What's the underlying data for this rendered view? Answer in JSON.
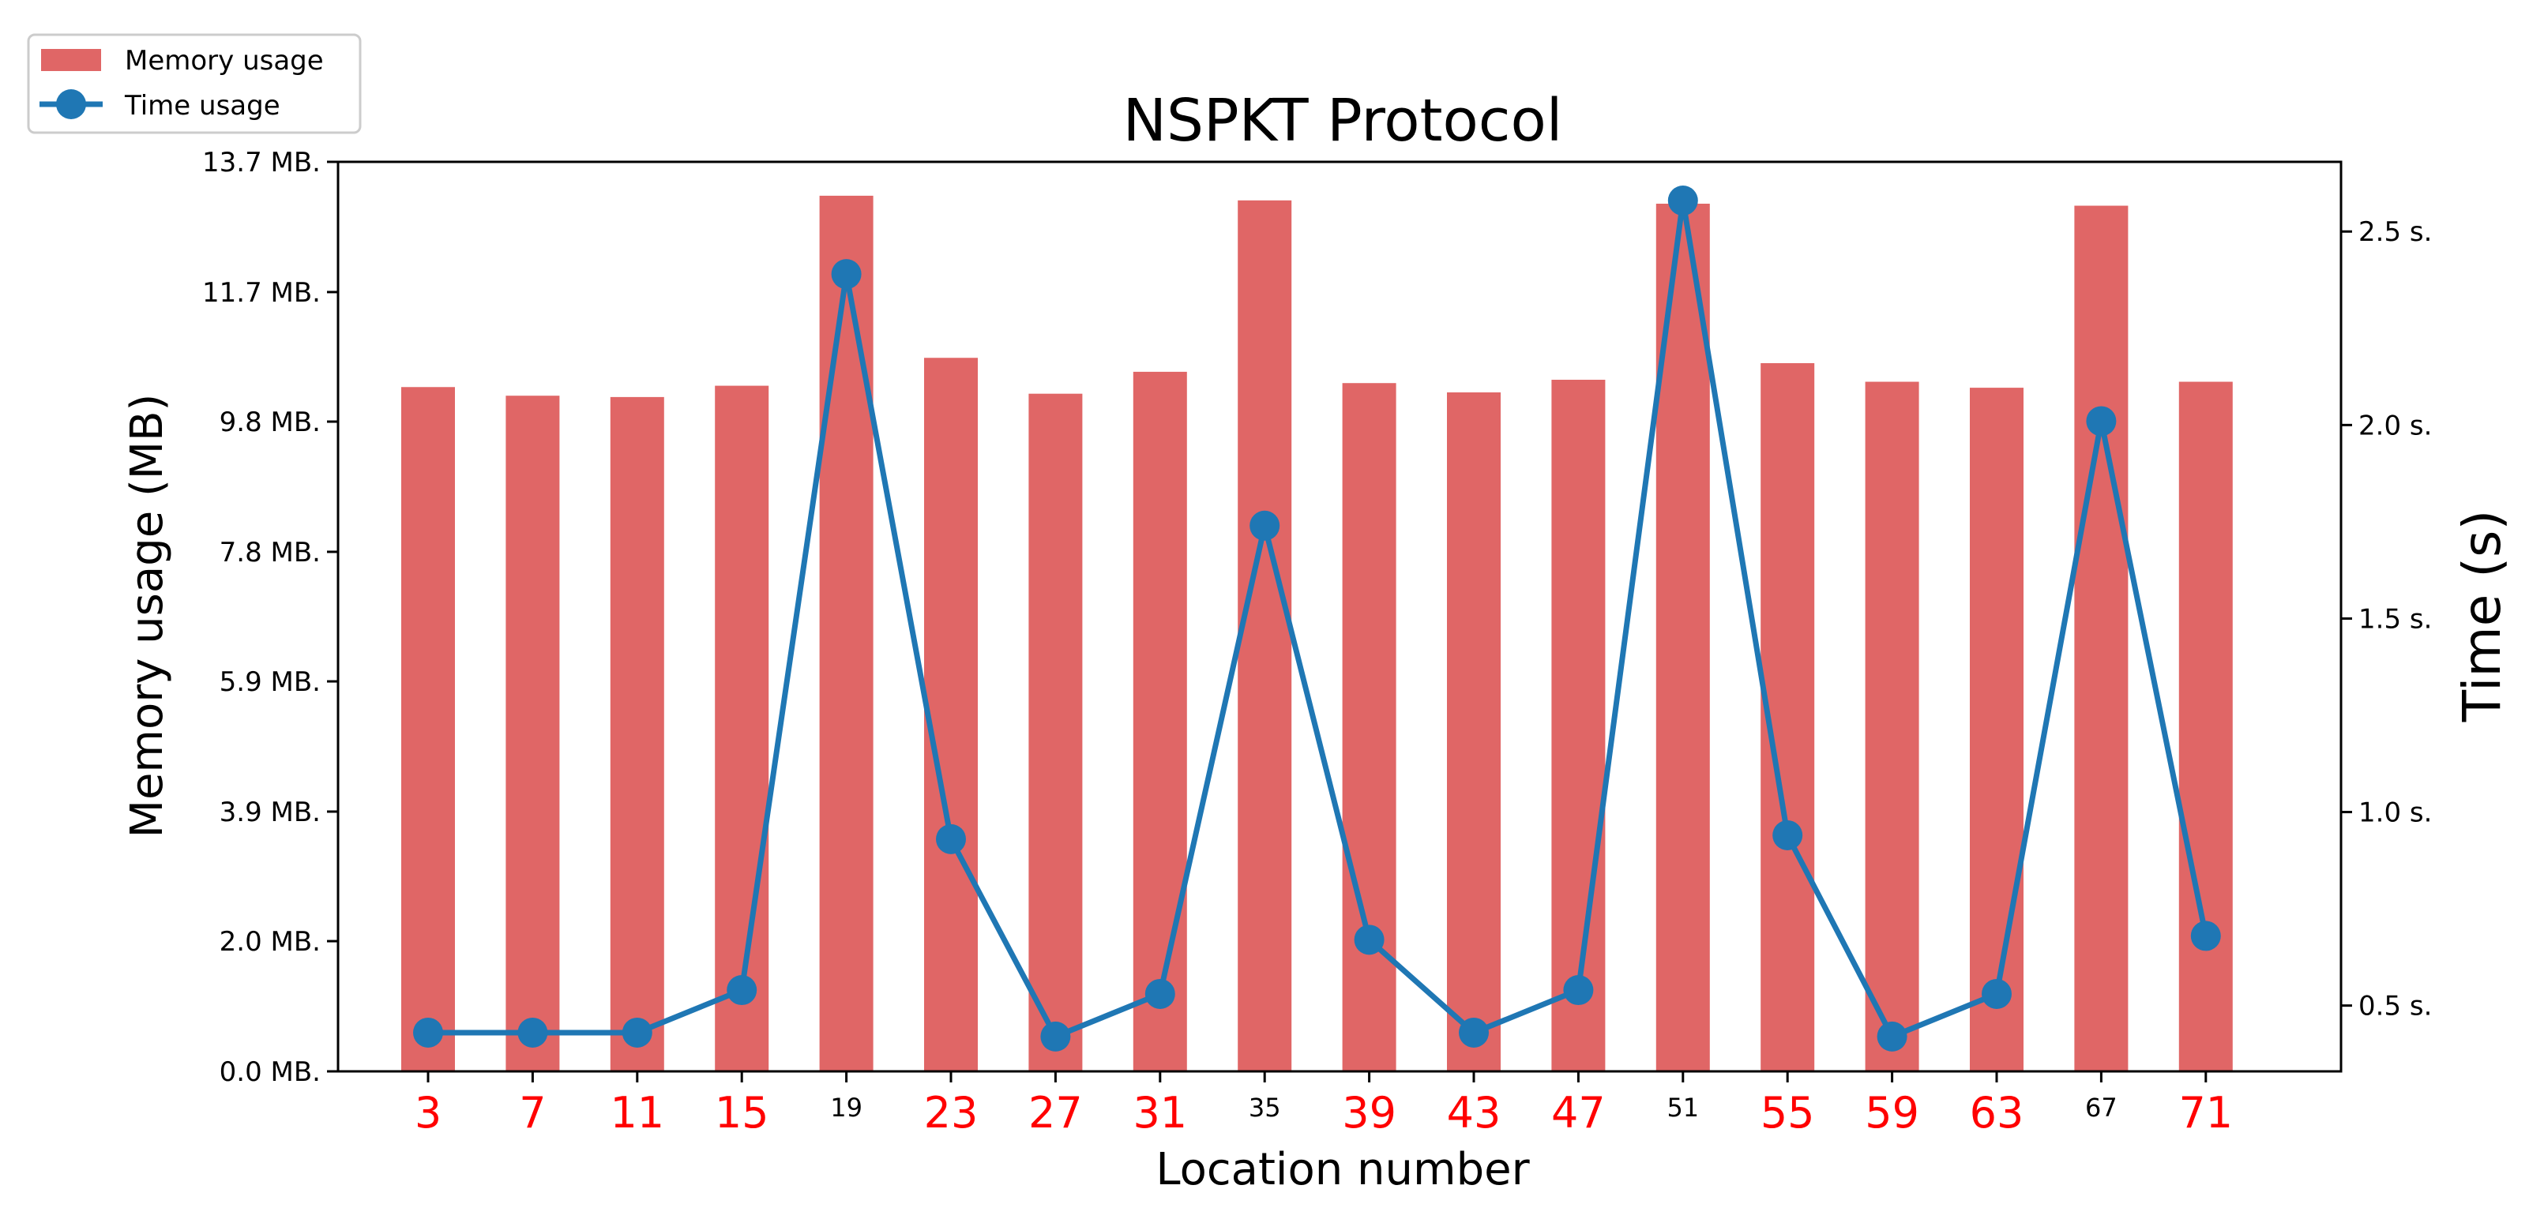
{
  "chart_data": {
    "type": "bar",
    "title": "NSPKT Protocol",
    "xlabel": "Location number",
    "ylabel": "Memory usage (MB)",
    "y2label": "Time (s)",
    "categories": [
      "3",
      "7",
      "11",
      "15",
      "19",
      "23",
      "27",
      "31",
      "35",
      "39",
      "43",
      "47",
      "51",
      "55",
      "59",
      "63",
      "67",
      "71"
    ],
    "highlighted_categories": [
      "3",
      "7",
      "11",
      "15",
      "23",
      "27",
      "31",
      "39",
      "43",
      "47",
      "55",
      "59",
      "63",
      "71"
    ],
    "y_ticks": [
      "0.0 MB.",
      "2.0 MB.",
      "3.9 MB.",
      "5.9 MB.",
      "7.8 MB.",
      "9.8 MB.",
      "11.7 MB.",
      "13.7 MB."
    ],
    "y_tick_values": [
      0.0,
      1.96,
      3.91,
      5.87,
      7.82,
      9.78,
      11.73,
      13.69
    ],
    "y2_ticks": [
      "0.5 s.",
      "1.0 s.",
      "1.5 s.",
      "2.0 s.",
      "2.5 s."
    ],
    "y2_tick_values": [
      0.5,
      1.0,
      1.5,
      2.0,
      2.5
    ],
    "ylim": [
      0,
      13.69
    ],
    "y2lim": [
      0.33,
      2.68
    ],
    "legend_position": "top-left-outside",
    "series": [
      {
        "name": "Memory usage",
        "type": "bar",
        "axis": "left",
        "color": "#e06666",
        "values": [
          10.3,
          10.17,
          10.15,
          10.32,
          13.18,
          10.74,
          10.2,
          10.53,
          13.11,
          10.36,
          10.22,
          10.41,
          13.06,
          10.66,
          10.38,
          10.29,
          13.03,
          10.38
        ]
      },
      {
        "name": "Time usage",
        "type": "line",
        "axis": "right",
        "color": "#1f77b4",
        "values": [
          0.43,
          0.43,
          0.43,
          0.54,
          2.39,
          0.93,
          0.42,
          0.53,
          1.74,
          0.67,
          0.43,
          0.54,
          2.58,
          0.94,
          0.42,
          0.53,
          2.01,
          0.68
        ]
      }
    ],
    "colors": {
      "highlight_tick": "#ff0000",
      "normal_tick": "#000000"
    }
  }
}
